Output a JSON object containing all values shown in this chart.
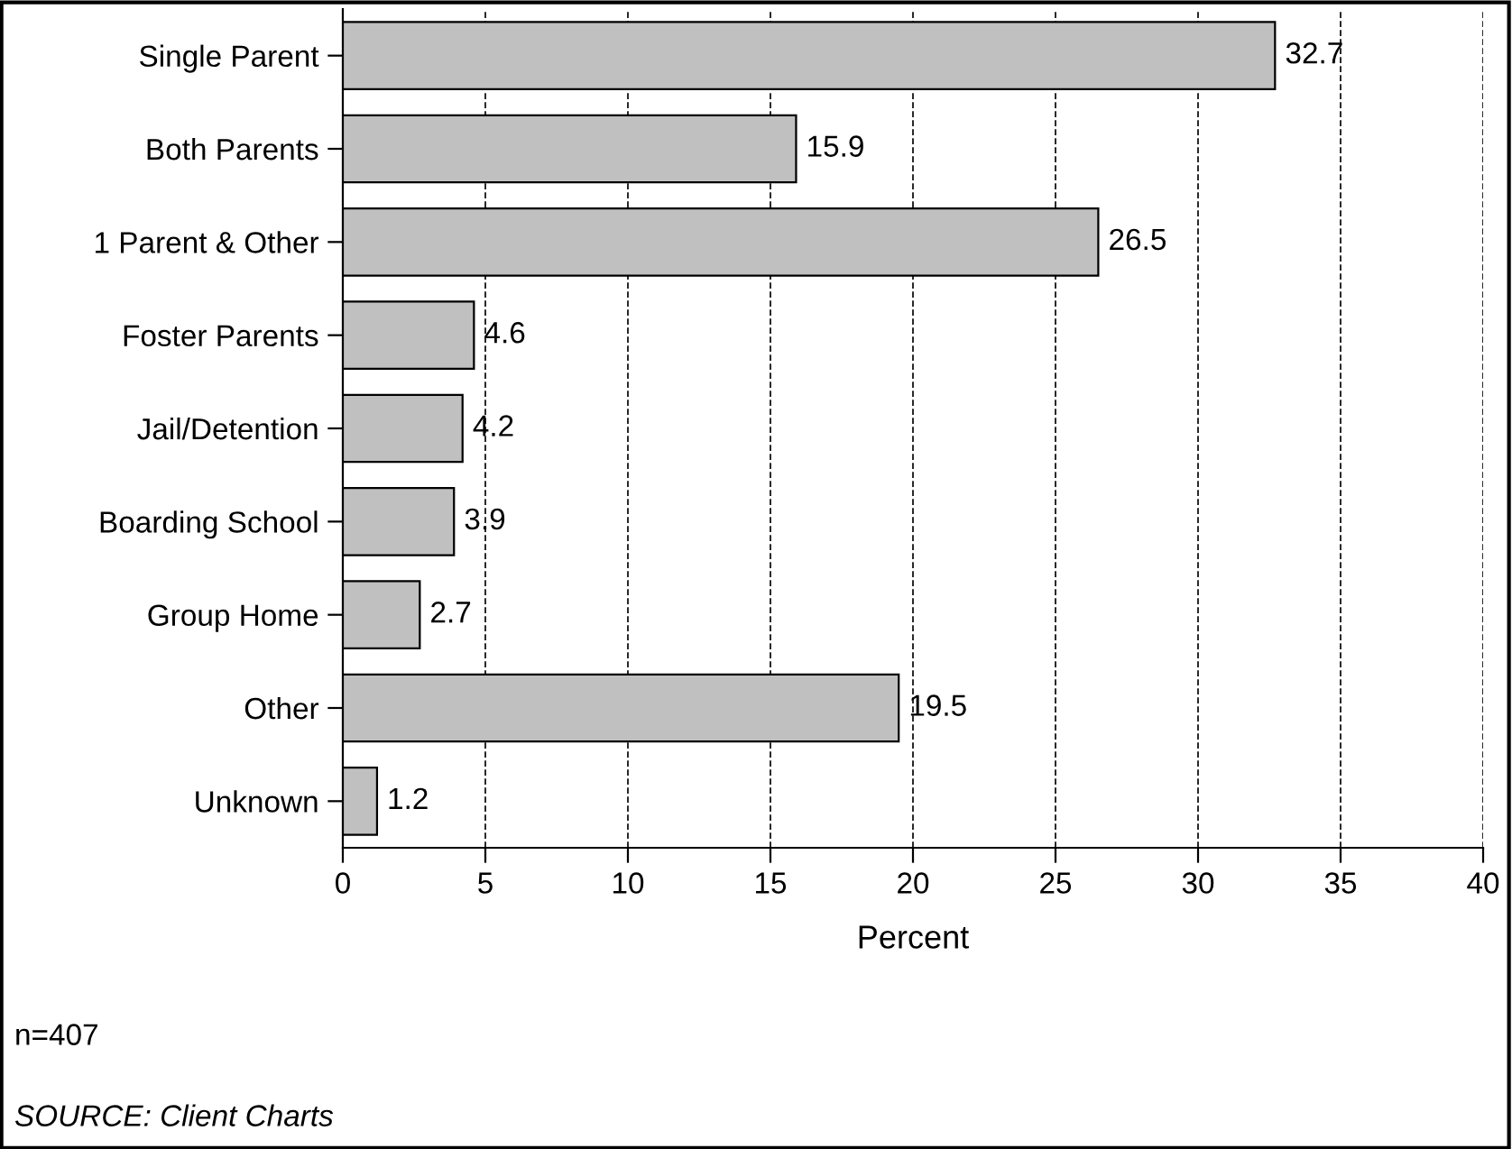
{
  "chart_data": {
    "type": "bar",
    "orientation": "horizontal",
    "xlabel": "Percent",
    "categories": [
      "Single Parent",
      "Both Parents",
      "1 Parent & Other",
      "Foster Parents",
      "Jail/Detention",
      "Boarding School",
      "Group Home",
      "Other",
      "Unknown"
    ],
    "values": [
      32.7,
      15.9,
      26.5,
      4.6,
      4.2,
      3.9,
      2.7,
      19.5,
      1.2
    ],
    "color": "#c0c0c0",
    "data_labels": true,
    "grid": "x",
    "line_style": "dashed",
    "xlim": [
      0,
      40
    ],
    "xticks": [
      0,
      5,
      10,
      15,
      20,
      25,
      30,
      35,
      40
    ],
    "annotations": [
      "n=407",
      "SOURCE: Client Charts"
    ]
  }
}
